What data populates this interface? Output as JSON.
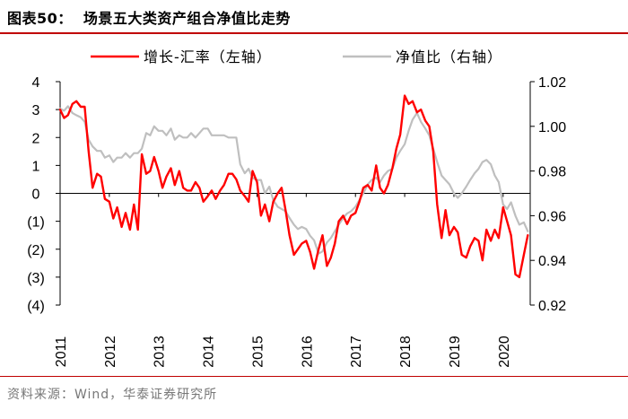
{
  "header": {
    "title": "图表50：  场景五大类资产组合净值比走势"
  },
  "footer": {
    "source": "资料来源：Wind，华泰证券研究所"
  },
  "colors": {
    "series1": "#ff0000",
    "series2": "#bfbfbf",
    "accent": "#c00000",
    "axis": "#000000"
  },
  "chart_data": {
    "type": "line",
    "title": "场景五大类资产组合净值比走势",
    "x_range": [
      2011.0,
      2020.55
    ],
    "x_tick_labels": [
      "2011",
      "2012",
      "2013",
      "2014",
      "2015",
      "2016",
      "2017",
      "2018",
      "2019",
      "2020"
    ],
    "x_tick_values": [
      2011,
      2012,
      2013,
      2014,
      2015,
      2016,
      2017,
      2018,
      2019,
      2020
    ],
    "left_axis": {
      "ylim": [
        -4,
        4
      ],
      "tick_values": [
        4,
        3,
        2,
        1,
        0,
        -1,
        -2,
        -3,
        -4
      ],
      "tick_labels": [
        "4",
        "3",
        "2",
        "1",
        "0",
        "(1)",
        "(2)",
        "(3)",
        "(4)"
      ]
    },
    "right_axis": {
      "ylim": [
        0.92,
        1.02
      ],
      "tick_values": [
        1.02,
        1.0,
        0.98,
        0.96,
        0.94,
        0.92
      ],
      "tick_labels": [
        "1.02",
        "1.00",
        "0.98",
        "0.96",
        "0.94",
        "0.92"
      ]
    },
    "legend": [
      "增长-汇率（左轴）",
      "净值比（右轴）"
    ],
    "series": [
      {
        "name": "增长-汇率（左轴）",
        "axis": "left",
        "color": "#ff0000",
        "x": [
          2011.0,
          2011.08,
          2011.16,
          2011.25,
          2011.33,
          2011.42,
          2011.5,
          2011.58,
          2011.66,
          2011.75,
          2011.83,
          2011.91,
          2012.0,
          2012.08,
          2012.16,
          2012.25,
          2012.33,
          2012.42,
          2012.5,
          2012.58,
          2012.66,
          2012.75,
          2012.83,
          2012.91,
          2013.0,
          2013.08,
          2013.16,
          2013.25,
          2013.33,
          2013.42,
          2013.5,
          2013.58,
          2013.66,
          2013.75,
          2013.83,
          2013.91,
          2014.0,
          2014.08,
          2014.16,
          2014.25,
          2014.33,
          2014.42,
          2014.5,
          2014.58,
          2014.66,
          2014.75,
          2014.83,
          2014.91,
          2015.0,
          2015.08,
          2015.16,
          2015.25,
          2015.33,
          2015.42,
          2015.5,
          2015.58,
          2015.66,
          2015.75,
          2015.83,
          2015.91,
          2016.0,
          2016.08,
          2016.16,
          2016.25,
          2016.33,
          2016.42,
          2016.5,
          2016.58,
          2016.66,
          2016.75,
          2016.83,
          2016.91,
          2017.0,
          2017.08,
          2017.16,
          2017.25,
          2017.33,
          2017.42,
          2017.5,
          2017.58,
          2017.66,
          2017.75,
          2017.83,
          2017.91,
          2018.0,
          2018.08,
          2018.16,
          2018.25,
          2018.33,
          2018.42,
          2018.5,
          2018.58,
          2018.66,
          2018.75,
          2018.83,
          2018.91,
          2019.0,
          2019.08,
          2019.16,
          2019.25,
          2019.33,
          2019.42,
          2019.5,
          2019.58,
          2019.66,
          2019.75,
          2019.83,
          2019.91,
          2020.0,
          2020.08,
          2020.16,
          2020.25,
          2020.33,
          2020.42,
          2020.5
        ],
        "values": [
          3.0,
          2.7,
          2.8,
          3.2,
          3.3,
          3.1,
          3.1,
          1.5,
          0.2,
          0.7,
          0.6,
          -0.2,
          -0.3,
          -0.9,
          -0.5,
          -1.2,
          -0.7,
          -1.3,
          -0.4,
          -1.3,
          1.4,
          0.7,
          0.8,
          1.3,
          0.8,
          0.2,
          0.6,
          0.9,
          0.3,
          0.8,
          0.2,
          0.1,
          0.1,
          0.4,
          0.2,
          -0.3,
          -0.1,
          0.1,
          -0.2,
          0.1,
          0.3,
          0.7,
          0.7,
          0.5,
          0.1,
          -0.1,
          -0.3,
          0.8,
          0.4,
          -0.8,
          -0.4,
          -1.0,
          -0.3,
          0.0,
          0.2,
          -0.6,
          -1.5,
          -2.2,
          -2.0,
          -1.8,
          -1.7,
          -2.1,
          -2.7,
          -2.0,
          -1.5,
          -2.6,
          -2.3,
          -1.8,
          -1.0,
          -0.8,
          -1.1,
          -0.8,
          -0.7,
          -0.3,
          0.2,
          0.3,
          0.1,
          1.0,
          0.2,
          0.0,
          0.3,
          0.9,
          1.6,
          2.1,
          3.5,
          3.2,
          3.3,
          2.9,
          3.0,
          2.6,
          2.4,
          1.5,
          -0.4,
          -1.6,
          -0.6,
          -1.5,
          -1.2,
          -1.4,
          -2.2,
          -2.3,
          -1.9,
          -1.6,
          -1.7,
          -2.4,
          -1.3,
          -1.7,
          -1.3,
          -1.6,
          -0.5,
          -1.0,
          -1.5,
          -2.9,
          -3.0,
          -2.2,
          -1.5
        ]
      },
      {
        "name": "净值比（右轴）",
        "axis": "right",
        "color": "#bfbfbf",
        "x": [
          2011.0,
          2011.08,
          2011.16,
          2011.25,
          2011.33,
          2011.42,
          2011.5,
          2011.58,
          2011.66,
          2011.75,
          2011.83,
          2011.91,
          2012.0,
          2012.08,
          2012.16,
          2012.25,
          2012.33,
          2012.42,
          2012.5,
          2012.58,
          2012.66,
          2012.75,
          2012.83,
          2012.91,
          2013.0,
          2013.08,
          2013.16,
          2013.25,
          2013.33,
          2013.42,
          2013.5,
          2013.58,
          2013.66,
          2013.75,
          2013.83,
          2013.91,
          2014.0,
          2014.08,
          2014.16,
          2014.25,
          2014.33,
          2014.42,
          2014.5,
          2014.58,
          2014.66,
          2014.75,
          2014.83,
          2014.91,
          2015.0,
          2015.08,
          2015.16,
          2015.25,
          2015.33,
          2015.42,
          2015.5,
          2015.58,
          2015.66,
          2015.75,
          2015.83,
          2015.91,
          2016.0,
          2016.08,
          2016.16,
          2016.25,
          2016.33,
          2016.42,
          2016.5,
          2016.58,
          2016.66,
          2016.75,
          2016.83,
          2016.91,
          2017.0,
          2017.08,
          2017.16,
          2017.25,
          2017.33,
          2017.42,
          2017.5,
          2017.58,
          2017.66,
          2017.75,
          2017.83,
          2017.91,
          2018.0,
          2018.08,
          2018.16,
          2018.25,
          2018.33,
          2018.42,
          2018.5,
          2018.58,
          2018.66,
          2018.75,
          2018.83,
          2018.91,
          2019.0,
          2019.08,
          2019.16,
          2019.25,
          2019.33,
          2019.42,
          2019.5,
          2019.58,
          2019.66,
          2019.75,
          2019.83,
          2019.91,
          2020.0,
          2020.08,
          2020.16,
          2020.25,
          2020.33,
          2020.42,
          2020.5
        ],
        "values": [
          1.008,
          1.007,
          1.009,
          1.006,
          1.005,
          1.004,
          1.002,
          0.994,
          0.991,
          0.989,
          0.989,
          0.986,
          0.987,
          0.984,
          0.986,
          0.986,
          0.988,
          0.986,
          0.988,
          0.988,
          0.99,
          0.997,
          0.996,
          1.0,
          0.998,
          0.998,
          0.996,
          0.999,
          0.994,
          0.996,
          0.995,
          0.995,
          0.997,
          0.995,
          0.997,
          0.999,
          0.999,
          0.996,
          0.996,
          0.996,
          0.996,
          0.995,
          0.995,
          0.995,
          0.983,
          0.979,
          0.981,
          0.977,
          0.976,
          0.976,
          0.97,
          0.973,
          0.967,
          0.964,
          0.963,
          0.962,
          0.959,
          0.956,
          0.954,
          0.955,
          0.954,
          0.951,
          0.949,
          0.943,
          0.944,
          0.948,
          0.95,
          0.953,
          0.956,
          0.959,
          0.961,
          0.962,
          0.964,
          0.967,
          0.97,
          0.974,
          0.976,
          0.977,
          0.975,
          0.978,
          0.98,
          0.981,
          0.986,
          0.989,
          0.992,
          0.998,
          1.003,
          1.006,
          1.002,
          0.999,
          0.996,
          0.99,
          0.984,
          0.978,
          0.976,
          0.974,
          0.97,
          0.968,
          0.97,
          0.973,
          0.976,
          0.979,
          0.981,
          0.984,
          0.985,
          0.983,
          0.978,
          0.975,
          0.965,
          0.963,
          0.966,
          0.96,
          0.956,
          0.957,
          0.953
        ]
      }
    ]
  }
}
